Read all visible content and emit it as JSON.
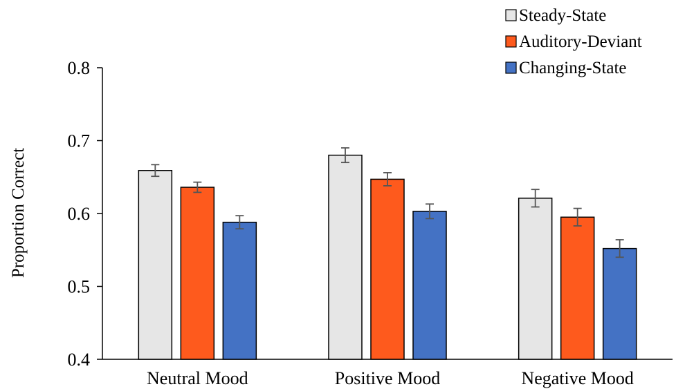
{
  "chart_data": {
    "type": "bar",
    "title": "",
    "xlabel": "",
    "ylabel": "Proportion Correct",
    "ylim": [
      0.4,
      0.8
    ],
    "yticks": [
      "0.4",
      "0.5",
      "0.6",
      "0.7",
      "0.8"
    ],
    "categories": [
      "Neutral Mood",
      "Positive Mood",
      "Negative Mood"
    ],
    "grid": false,
    "legend_position": "top-right",
    "series": [
      {
        "name": "Steady-State",
        "color": "#e6e6e6",
        "values": [
          0.659,
          0.68,
          0.621
        ],
        "errors": [
          0.008,
          0.01,
          0.012
        ]
      },
      {
        "name": "Auditory-Deviant",
        "color": "#fe5a1d",
        "values": [
          0.636,
          0.647,
          0.595
        ],
        "errors": [
          0.007,
          0.009,
          0.012
        ]
      },
      {
        "name": "Changing-State",
        "color": "#4472c4",
        "values": [
          0.588,
          0.603,
          0.552
        ],
        "errors": [
          0.009,
          0.01,
          0.012
        ]
      }
    ]
  }
}
